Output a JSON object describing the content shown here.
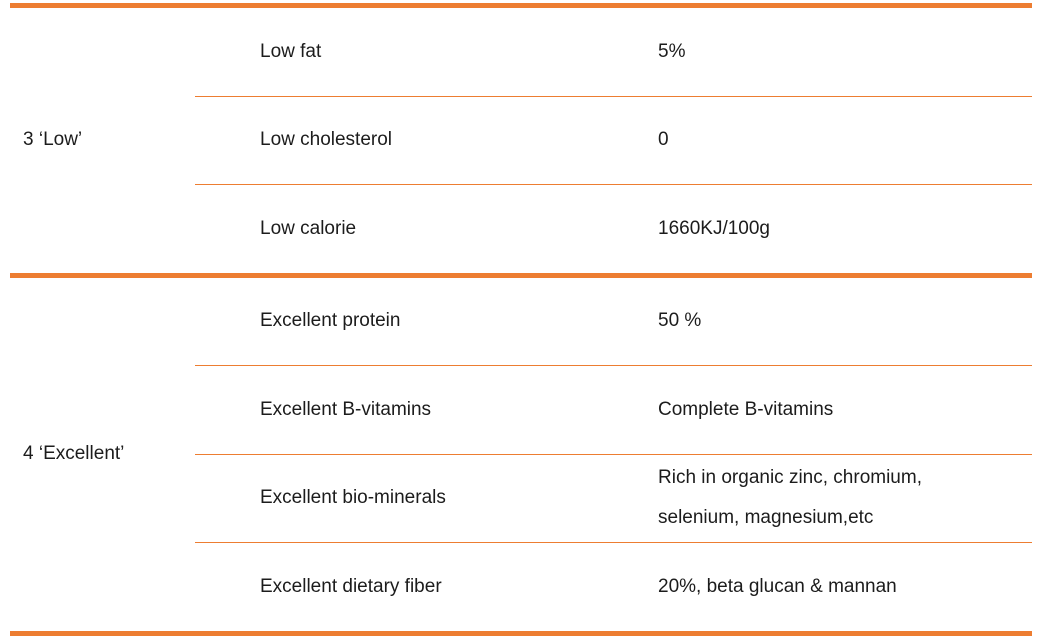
{
  "table": {
    "accent_color": "#ED7D31",
    "columns": [
      "category",
      "attribute",
      "value"
    ],
    "groups": [
      {
        "label": "3 ‘Low’",
        "rows": [
          {
            "name": "Low fat",
            "value": "5%"
          },
          {
            "name": "Low cholesterol",
            "value": "0"
          },
          {
            "name": "Low calorie",
            "value": "1660KJ/100g"
          }
        ]
      },
      {
        "label": "4 ‘Excellent’",
        "rows": [
          {
            "name": "Excellent protein",
            "value": "50 %"
          },
          {
            "name": "Excellent B-vitamins",
            "value": "Complete B-vitamins"
          },
          {
            "name": "Excellent bio-minerals",
            "value": "Rich in organic zinc, chromium,\nselenium, magnesium,etc"
          },
          {
            "name": "Excellent dietary fiber",
            "value": "20%, beta glucan & mannan"
          }
        ]
      }
    ]
  }
}
